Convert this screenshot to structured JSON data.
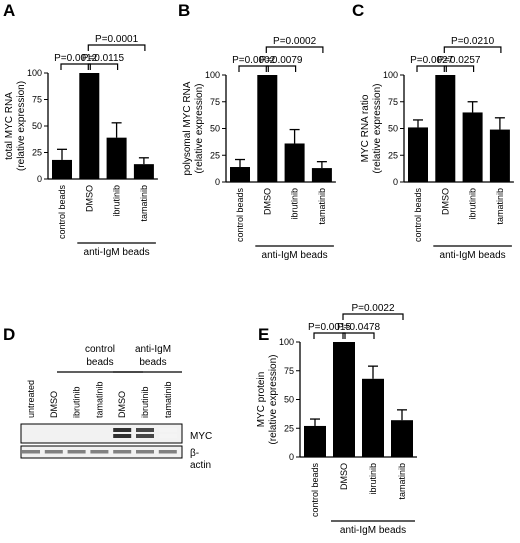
{
  "panels": {
    "A": {
      "letter": "A"
    },
    "B": {
      "letter": "B"
    },
    "C": {
      "letter": "C"
    },
    "D": {
      "letter": "D"
    },
    "E": {
      "letter": "E"
    }
  },
  "colors": {
    "bar": "#000000",
    "axis": "#000000",
    "background": "#ffffff"
  },
  "chart_data": [
    {
      "panel": "A",
      "type": "bar",
      "ylabel": [
        "total MYC RNA",
        "(relative expression)"
      ],
      "ylim": [
        0,
        100
      ],
      "yticks": [
        "0",
        "25",
        "50",
        "75",
        "100"
      ],
      "categories": [
        "control beads",
        "DMSO",
        "ibrutinib",
        "tamatinib"
      ],
      "values": [
        18,
        100,
        39,
        14
      ],
      "errors": [
        10,
        0,
        14,
        6
      ],
      "group_label": "anti-IgM beads",
      "comparisons": [
        {
          "from": 0,
          "to": 1,
          "label": "P=0.0012"
        },
        {
          "from": 1,
          "to": 2,
          "label": "P=0.0115"
        },
        {
          "from": 1,
          "to": 3,
          "label": "P=0.0001"
        }
      ]
    },
    {
      "panel": "B",
      "type": "bar",
      "ylabel": [
        "polysomal MYC RNA",
        "(relative expression)"
      ],
      "ylim": [
        0,
        100
      ],
      "yticks": [
        "0",
        "25",
        "50",
        "75",
        "100"
      ],
      "categories": [
        "control beads",
        "DMSO",
        "ibrutinib",
        "tamatinib"
      ],
      "values": [
        14,
        100,
        36,
        13
      ],
      "errors": [
        7,
        0,
        13,
        6
      ],
      "group_label": "anti-IgM beads",
      "comparisons": [
        {
          "from": 0,
          "to": 1,
          "label": "P=0.0002"
        },
        {
          "from": 1,
          "to": 2,
          "label": "P=0.0079"
        },
        {
          "from": 1,
          "to": 3,
          "label": "P=0.0002"
        }
      ]
    },
    {
      "panel": "C",
      "type": "bar",
      "ylabel": [
        "MYC RNA ratio",
        "(relative expression)"
      ],
      "ylim": [
        0,
        100
      ],
      "yticks": [
        "0",
        "25",
        "50",
        "75",
        "100"
      ],
      "categories": [
        "control beads",
        "DMSO",
        "ibrutinib",
        "tamatinib"
      ],
      "values": [
        51,
        100,
        65,
        49
      ],
      "errors": [
        7,
        0,
        10,
        11
      ],
      "group_label": "anti-IgM beads",
      "comparisons": [
        {
          "from": 0,
          "to": 1,
          "label": "P=0.0027"
        },
        {
          "from": 1,
          "to": 2,
          "label": "P=0.0257"
        },
        {
          "from": 1,
          "to": 3,
          "label": "P=0.0210"
        }
      ]
    },
    {
      "panel": "E",
      "type": "bar",
      "ylabel": [
        "MYC protein",
        "(relative expression)"
      ],
      "ylim": [
        0,
        100
      ],
      "yticks": [
        "0",
        "25",
        "50",
        "75",
        "100"
      ],
      "categories": [
        "control beads",
        "DMSO",
        "ibrutinib",
        "tamatinib"
      ],
      "values": [
        27,
        100,
        68,
        32
      ],
      "errors": [
        6,
        0,
        11,
        9
      ],
      "group_label": "anti-IgM beads",
      "comparisons": [
        {
          "from": 0,
          "to": 1,
          "label": "P=0.0015"
        },
        {
          "from": 1,
          "to": 2,
          "label": "P=0.0478"
        },
        {
          "from": 1,
          "to": 3,
          "label": "P=0.0022"
        }
      ]
    }
  ],
  "blot": {
    "group_labels": [
      [
        "control",
        "beads"
      ],
      [
        "anti-IgM",
        "beads"
      ]
    ],
    "lanes": [
      "untreated",
      "DMSO",
      "ibrutinib",
      "tamatinib",
      "DMSO",
      "ibrutinib",
      "tamatinib"
    ],
    "rows": [
      {
        "label": "MYC",
        "intensities": [
          0,
          0,
          0,
          0,
          0.9,
          0.8,
          0.05
        ]
      },
      {
        "label_lines": [
          "β-",
          "actin"
        ],
        "intensities": [
          0.55,
          0.55,
          0.55,
          0.55,
          0.55,
          0.55,
          0.55
        ]
      }
    ]
  }
}
